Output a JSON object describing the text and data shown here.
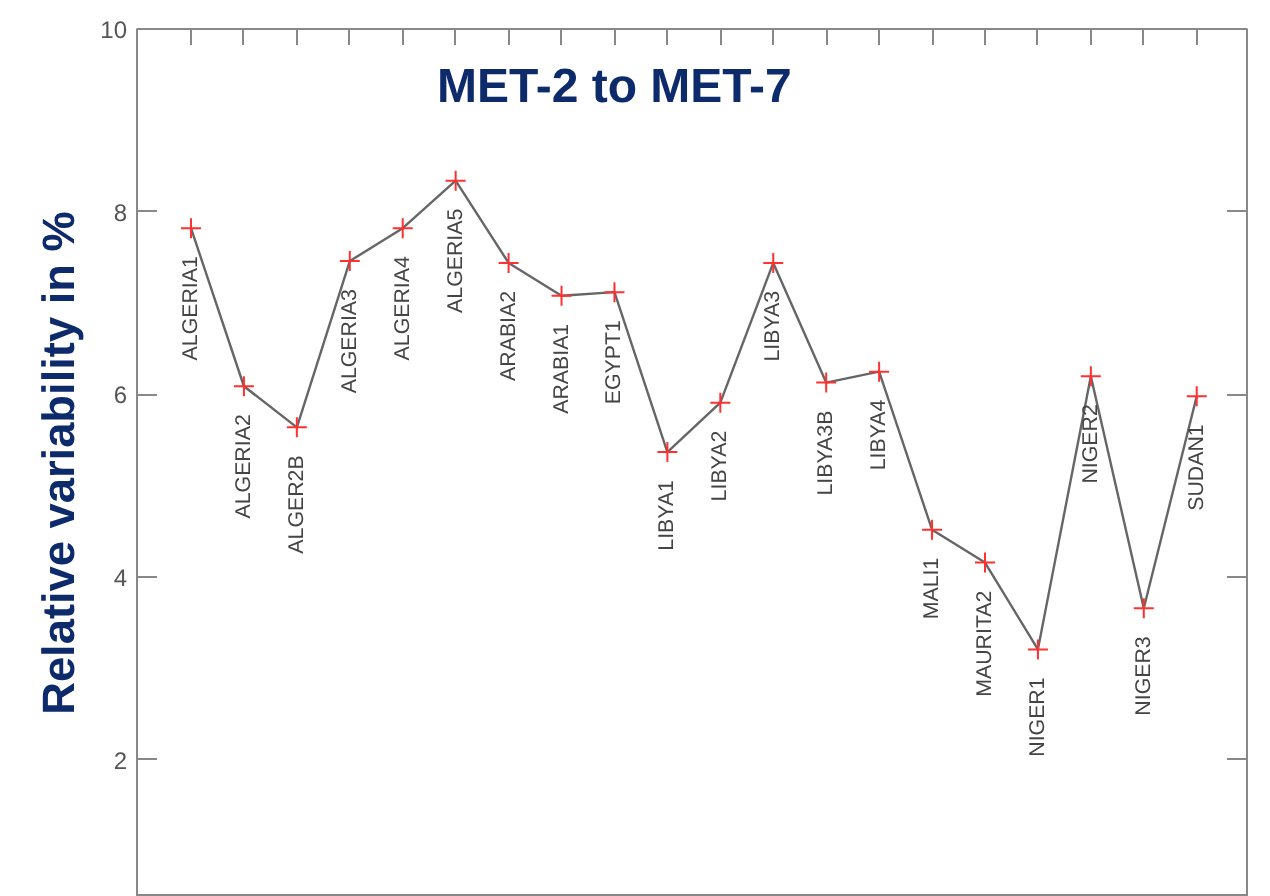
{
  "chart_data": {
    "type": "line",
    "title": "MET-2 to MET-7",
    "ylabel": "Relative variability in %",
    "categories": [
      "ALGERIA1",
      "ALGERIA2",
      "ALGER2B",
      "ALGERIA3",
      "ALGERIA4",
      "ALGERIA5",
      "ARABIA2",
      "ARABIA1",
      "EGYPT1",
      "LIBYA1",
      "LIBYA2",
      "LIBYA3",
      "LIBYA3B",
      "LIBYA4",
      "MALI1",
      "MAURITA2",
      "NIGER1",
      "NIGER2",
      "NIGER3",
      "SUDAN1"
    ],
    "series": [
      {
        "color": "#666666",
        "values": [
          7.82,
          6.09,
          5.64,
          7.46,
          7.82,
          8.34,
          7.44,
          7.08,
          7.12,
          5.37,
          5.91,
          7.44,
          6.13,
          6.25,
          4.52,
          4.16,
          3.21,
          6.2,
          3.66,
          5.98
        ]
      }
    ],
    "marker": "cross",
    "ylim": [
      0.5,
      10
    ],
    "yticks": [
      2,
      4,
      6,
      8,
      10
    ],
    "grid": false
  }
}
